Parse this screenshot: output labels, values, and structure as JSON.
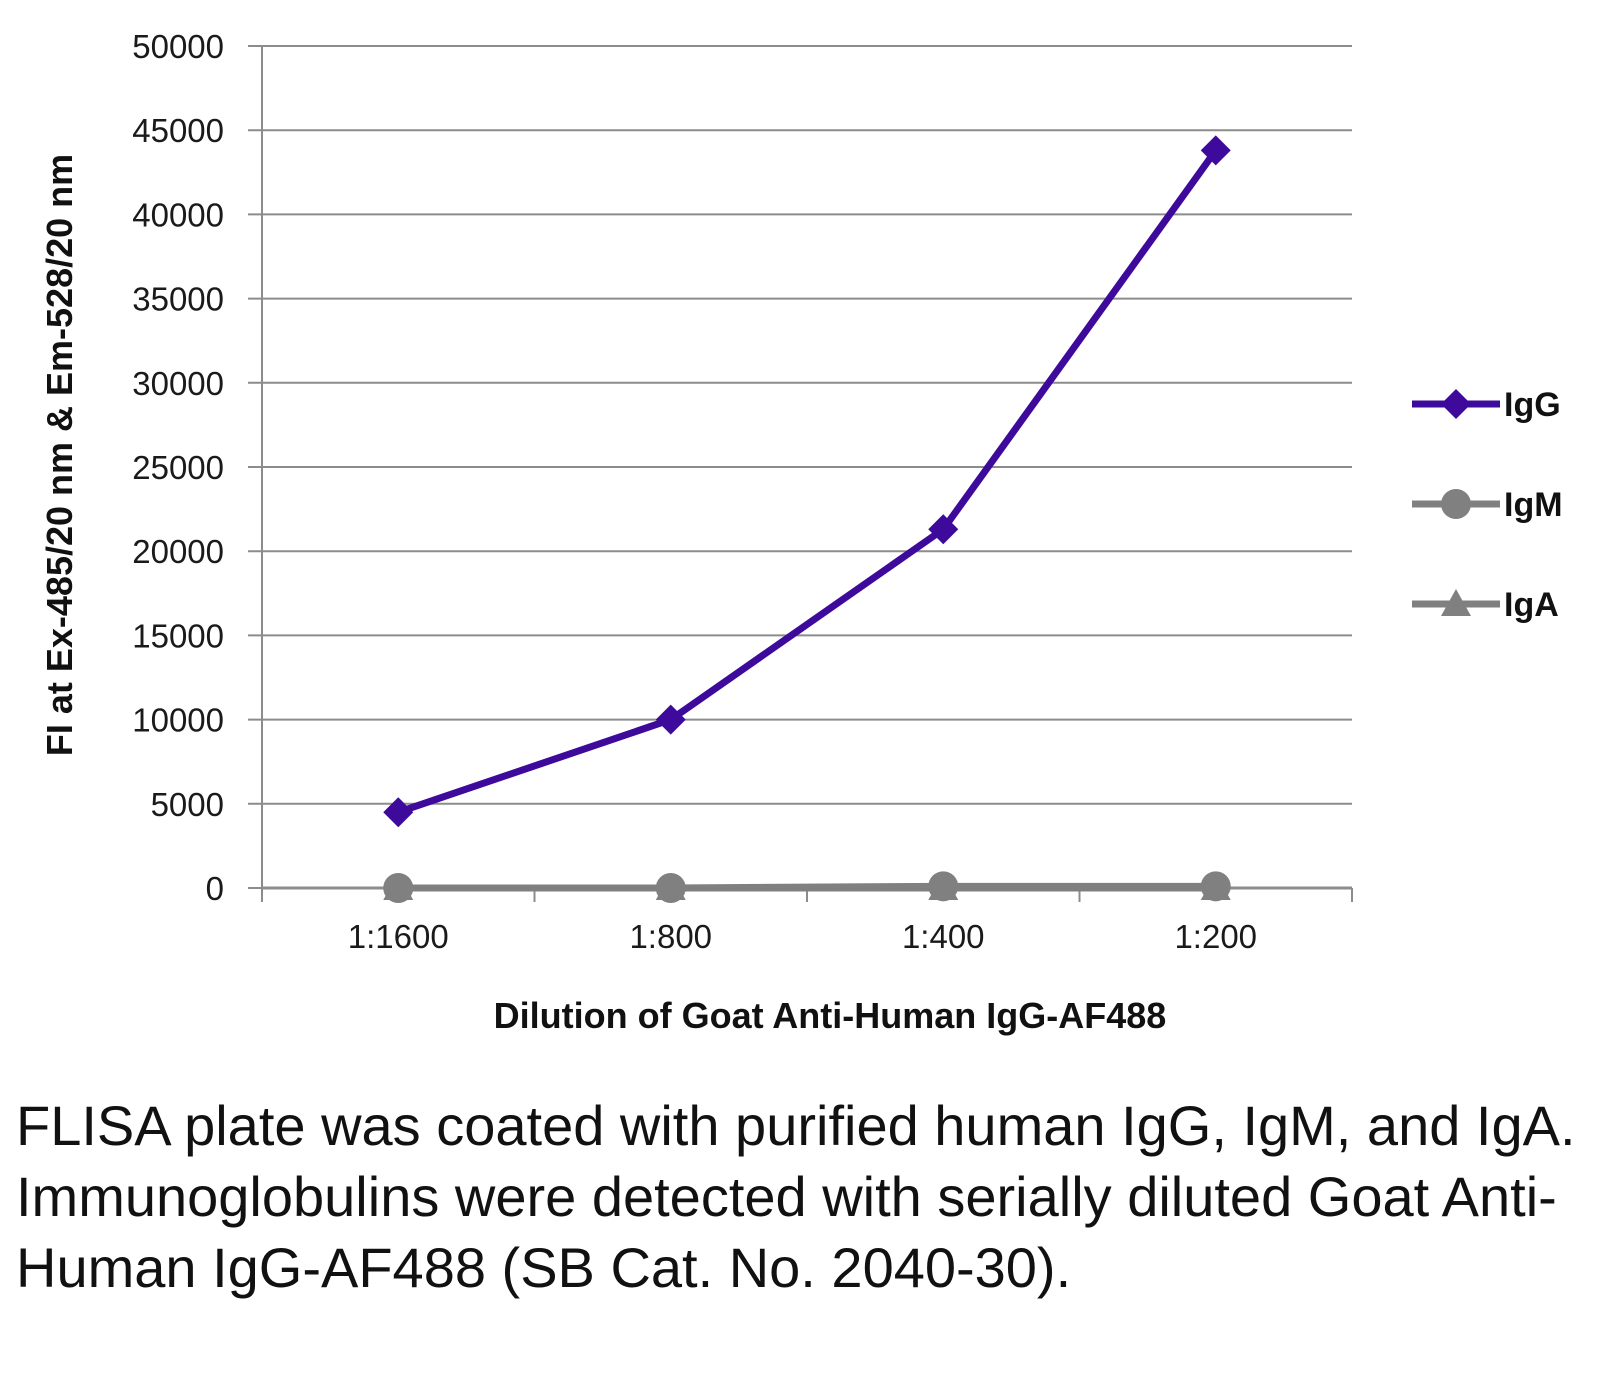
{
  "chart_data": {
    "type": "line",
    "categories": [
      "1:1600",
      "1:800",
      "1:400",
      "1:200"
    ],
    "series": [
      {
        "name": "IgG",
        "values": [
          4500,
          10000,
          21300,
          43800
        ],
        "color": "#3d0a9c",
        "marker": "diamond"
      },
      {
        "name": "IgM",
        "values": [
          0,
          0,
          100,
          100
        ],
        "color": "#808080",
        "marker": "circle"
      },
      {
        "name": "IgA",
        "values": [
          0,
          0,
          0,
          0
        ],
        "color": "#808080",
        "marker": "triangle"
      }
    ],
    "xlabel": "Dilution of Goat Anti-Human IgG-AF488",
    "ylabel": "FI at Ex-485/20 nm & Em-528/20 nm",
    "ylim": [
      0,
      50000
    ],
    "yticks": [
      0,
      5000,
      10000,
      15000,
      20000,
      25000,
      30000,
      35000,
      40000,
      45000,
      50000
    ],
    "grid": true,
    "legend_position": "right"
  },
  "caption": "FLISA plate was coated with purified human IgG, IgM, and IgA.  Immunoglobulins were detected with serially diluted Goat Anti-Human IgG-AF488 (SB Cat. No. 2040-30)."
}
